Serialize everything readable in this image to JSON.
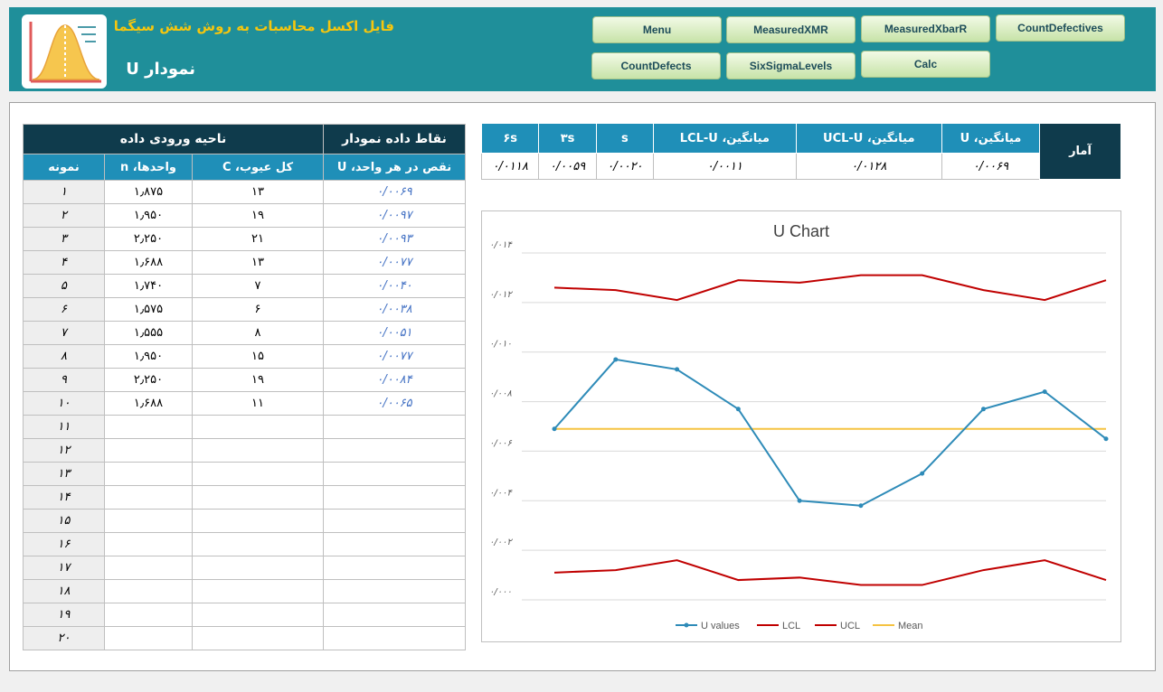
{
  "header": {
    "subtitle": "فایل اکسل محاسبات به روش شش سیگما",
    "title": "نمودار U",
    "logo_icon": "bell-curve-icon"
  },
  "nav": [
    "Menu",
    "MeasuredXMR",
    "MeasuredXbarR",
    "CountDefectives",
    "CountDefects",
    "SixSigmaLevels",
    "Calc"
  ],
  "data_table": {
    "group_headers": [
      "نقاط داده نمودار",
      "ناحیه ورودی داده"
    ],
    "columns": [
      "نقص در هر واحد، U",
      "کل عیوب، C",
      "واحدها، n",
      "نمونه"
    ],
    "rows": [
      {
        "u": "۰/۰۰۶۹",
        "c": "۱۳",
        "n": "۱٫۸۷۵",
        "i": "۱"
      },
      {
        "u": "۰/۰۰۹۷",
        "c": "۱۹",
        "n": "۱٫۹۵۰",
        "i": "۲"
      },
      {
        "u": "۰/۰۰۹۳",
        "c": "۲۱",
        "n": "۲٫۲۵۰",
        "i": "۳"
      },
      {
        "u": "۰/۰۰۷۷",
        "c": "۱۳",
        "n": "۱٫۶۸۸",
        "i": "۴"
      },
      {
        "u": "۰/۰۰۴۰",
        "c": "۷",
        "n": "۱٫۷۴۰",
        "i": "۵"
      },
      {
        "u": "۰/۰۰۳۸",
        "c": "۶",
        "n": "۱٫۵۷۵",
        "i": "۶"
      },
      {
        "u": "۰/۰۰۵۱",
        "c": "۸",
        "n": "۱٫۵۵۵",
        "i": "۷"
      },
      {
        "u": "۰/۰۰۷۷",
        "c": "۱۵",
        "n": "۱٫۹۵۰",
        "i": "۸"
      },
      {
        "u": "۰/۰۰۸۴",
        "c": "۱۹",
        "n": "۲٫۲۵۰",
        "i": "۹"
      },
      {
        "u": "۰/۰۰۶۵",
        "c": "۱۱",
        "n": "۱٫۶۸۸",
        "i": "۱۰"
      },
      {
        "u": "",
        "c": "",
        "n": "",
        "i": "۱۱"
      },
      {
        "u": "",
        "c": "",
        "n": "",
        "i": "۱۲"
      },
      {
        "u": "",
        "c": "",
        "n": "",
        "i": "۱۳"
      },
      {
        "u": "",
        "c": "",
        "n": "",
        "i": "۱۴"
      },
      {
        "u": "",
        "c": "",
        "n": "",
        "i": "۱۵"
      },
      {
        "u": "",
        "c": "",
        "n": "",
        "i": "۱۶"
      },
      {
        "u": "",
        "c": "",
        "n": "",
        "i": "۱۷"
      },
      {
        "u": "",
        "c": "",
        "n": "",
        "i": "۱۸"
      },
      {
        "u": "",
        "c": "",
        "n": "",
        "i": "۱۹"
      },
      {
        "u": "",
        "c": "",
        "n": "",
        "i": "۲۰"
      }
    ]
  },
  "stats": {
    "label": "آمار",
    "headers": [
      "میانگین، U",
      "میانگین، UCL-U",
      "میانگین، LCL-U",
      "s",
      "۳s",
      "۶s"
    ],
    "values": [
      "۰/۰۰۶۹",
      "۰/۰۱۲۸",
      "۰/۰۰۱۱",
      "۰/۰۰۲۰",
      "۰/۰۰۵۹",
      "۰/۰۱۱۸"
    ]
  },
  "chart_data": {
    "type": "line",
    "title": "U Chart",
    "x": [
      1,
      2,
      3,
      4,
      5,
      6,
      7,
      8,
      9,
      10
    ],
    "ylim": [
      0,
      0.014
    ],
    "ytick_labels": [
      "۰/۰۰۰",
      "۰/۰۰۲",
      "۰/۰۰۴",
      "۰/۰۰۶",
      "۰/۰۰۸",
      "۰/۰۱۰",
      "۰/۰۱۲",
      "۰/۰۱۴"
    ],
    "grid": true,
    "legend": "bottom",
    "series": [
      {
        "name": "U values",
        "color": "#2e8bb8",
        "marker": true,
        "values": [
          0.0069,
          0.0097,
          0.0093,
          0.0077,
          0.004,
          0.0038,
          0.0051,
          0.0077,
          0.0084,
          0.0065
        ]
      },
      {
        "name": "LCL",
        "color": "#c00000",
        "marker": false,
        "values": [
          0.0011,
          0.0012,
          0.0016,
          0.0008,
          0.0009,
          0.0006,
          0.0006,
          0.0012,
          0.0016,
          0.0008
        ]
      },
      {
        "name": "UCL",
        "color": "#c00000",
        "marker": false,
        "values": [
          0.0126,
          0.0125,
          0.0121,
          0.0129,
          0.0128,
          0.0131,
          0.0131,
          0.0125,
          0.0121,
          0.0129
        ]
      },
      {
        "name": "Mean",
        "color": "#f5c342",
        "marker": false,
        "values": [
          0.0069,
          0.0069,
          0.0069,
          0.0069,
          0.0069,
          0.0069,
          0.0069,
          0.0069,
          0.0069,
          0.0069
        ]
      }
    ]
  }
}
